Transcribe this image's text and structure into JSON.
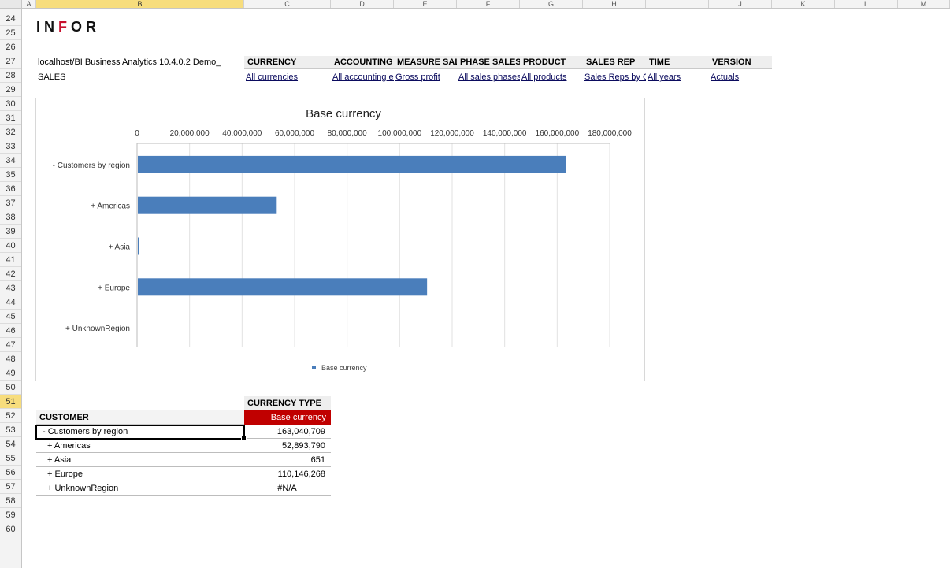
{
  "spreadsheet": {
    "columns": [
      "A",
      "B",
      "C",
      "D",
      "E",
      "F",
      "G",
      "H",
      "I",
      "J",
      "K",
      "L",
      "M"
    ],
    "rows": [
      "24",
      "25",
      "26",
      "27",
      "28",
      "29",
      "30",
      "31",
      "32",
      "33",
      "34",
      "35",
      "36",
      "37",
      "38",
      "39",
      "40",
      "41",
      "42",
      "43",
      "44",
      "45",
      "46",
      "47",
      "48",
      "49",
      "50",
      "51",
      "52",
      "53",
      "54",
      "55",
      "56",
      "57",
      "58",
      "59",
      "60"
    ],
    "selected_row": "51",
    "selected_column": "B"
  },
  "logo": {
    "text_part1": "IN",
    "text_o": "F",
    "text_part2": "OR"
  },
  "header": {
    "connection": "localhost/BI Business Analytics 10.4.0.2 Demo_",
    "cube": "SALES",
    "dimensions": [
      {
        "name": "CURRENCY",
        "value": "All currencies"
      },
      {
        "name": "ACCOUNTING",
        "value": "All accounting er"
      },
      {
        "name": "MEASURE SAL",
        "value": "Gross profit"
      },
      {
        "name": "PHASE SALES",
        "value": "All sales phases"
      },
      {
        "name": "PRODUCT",
        "value": "All products"
      },
      {
        "name": "SALES REP",
        "value": "Sales Reps by C"
      },
      {
        "name": "TIME",
        "value": "All years"
      },
      {
        "name": "VERSION",
        "value": "Actuals"
      }
    ]
  },
  "chart_data": {
    "type": "bar",
    "orientation": "horizontal",
    "title": "Base currency",
    "categories": [
      "- Customers by region",
      "+ Americas",
      "+ Asia",
      "+ Europe",
      "+ UnknownRegion"
    ],
    "series": [
      {
        "name": "Base currency",
        "values": [
          163040709,
          52893790,
          651,
          110146268,
          null
        ],
        "color": "#4a7ebb"
      }
    ],
    "xlim": [
      0,
      180000000
    ],
    "x_ticks": [
      "0",
      "20,000,000",
      "40,000,000",
      "60,000,000",
      "80,000,000",
      "100,000,000",
      "120,000,000",
      "140,000,000",
      "160,000,000",
      "180,000,000"
    ],
    "x_tick_values": [
      0,
      20000000,
      40000000,
      60000000,
      80000000,
      100000000,
      120000000,
      140000000,
      160000000,
      180000000
    ],
    "grid": true,
    "legend": "bottom"
  },
  "table": {
    "column_header": "CURRENCY TYPE",
    "row_header": "CUSTOMER",
    "value_header": "Base currency",
    "header_color": "#c00000",
    "rows": [
      {
        "label": "- Customers by region",
        "value": "163,040,709"
      },
      {
        "label": "+ Americas",
        "value": "52,893,790"
      },
      {
        "label": "+ Asia",
        "value": "651"
      },
      {
        "label": "+ Europe",
        "value": "110,146,268"
      },
      {
        "label": "+ UnknownRegion",
        "value": "#N/A"
      }
    ]
  }
}
